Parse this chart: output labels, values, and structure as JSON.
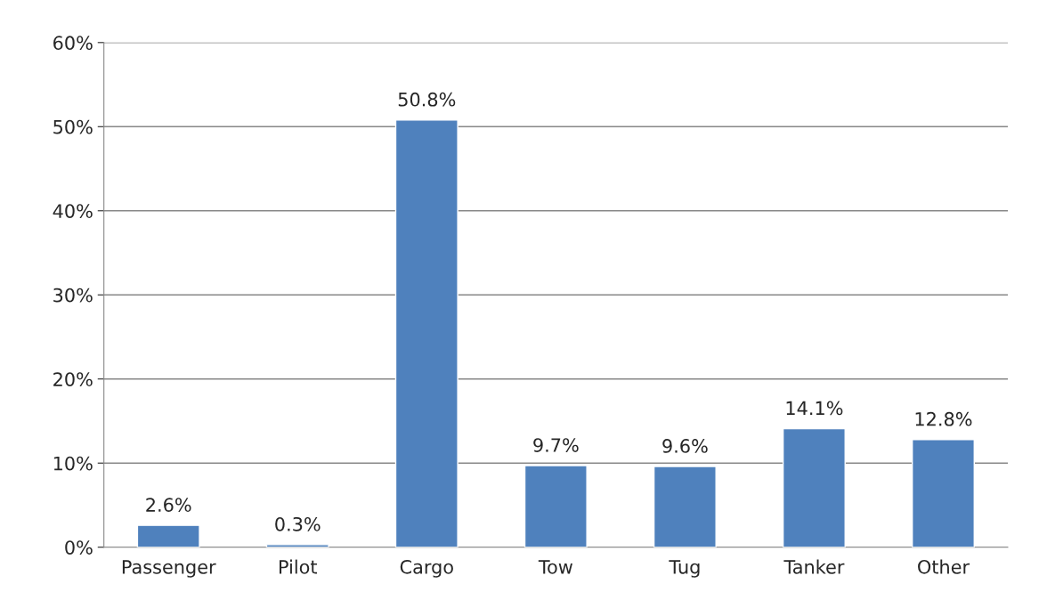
{
  "chart_data": {
    "type": "bar",
    "categories": [
      "Passenger",
      "Pilot",
      "Cargo",
      "Tow",
      "Tug",
      "Tanker",
      "Other"
    ],
    "values": [
      2.6,
      0.3,
      50.8,
      9.7,
      9.6,
      14.1,
      12.8
    ],
    "value_labels": [
      "2.6%",
      "0.3%",
      "50.8%",
      "9.7%",
      "9.6%",
      "14.1%",
      "12.8%"
    ],
    "color": "#4f81bd",
    "ylim": [
      0,
      60
    ],
    "yticks": [
      {
        "value": 0,
        "label": "0%"
      },
      {
        "value": 10,
        "label": "10%"
      },
      {
        "value": 20,
        "label": "20%"
      },
      {
        "value": 30,
        "label": "30%"
      },
      {
        "value": 40,
        "label": "40%"
      },
      {
        "value": 50,
        "label": "50%"
      },
      {
        "value": 60,
        "label": "60%"
      }
    ],
    "grid": "y"
  }
}
